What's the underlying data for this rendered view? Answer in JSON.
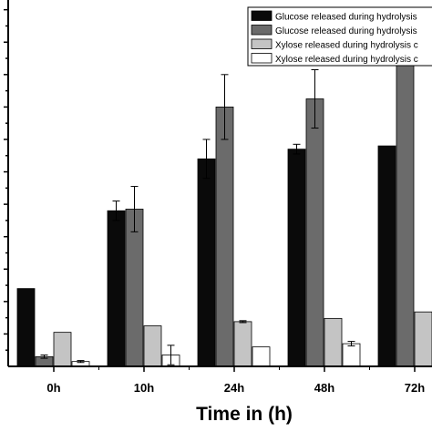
{
  "chart_data": {
    "type": "bar",
    "title": "",
    "xlabel": "Time in (h)",
    "ylabel": "",
    "categories": [
      "0h",
      "10h",
      "24h",
      "48h",
      "72h"
    ],
    "ylim": [
      0,
      11.3
    ],
    "grid": false,
    "legend_position": "top-right",
    "series": [
      {
        "name": "Glucose released during hydrolysis",
        "color": "#0a0a0a",
        "values": [
          2.4,
          4.8,
          6.4,
          6.7,
          6.8
        ],
        "errors": [
          0,
          0.3,
          0.6,
          0.15,
          0
        ]
      },
      {
        "name": "Glucose released during hydrolysis",
        "color": "#6b6b6b",
        "values": [
          0.3,
          4.85,
          8.0,
          8.25,
          10.3
        ],
        "errors": [
          0.05,
          0.7,
          1.0,
          0.9,
          0.2
        ]
      },
      {
        "name": "Xylose released during hydrolysis c",
        "color": "#c4c4c4",
        "values": [
          1.05,
          1.25,
          1.38,
          1.48,
          1.68
        ],
        "errors": [
          0,
          0,
          0.03,
          0,
          0
        ]
      },
      {
        "name": "Xylose released during hydrolysis c",
        "color": "#ffffff",
        "values": [
          0.15,
          0.35,
          0.6,
          0.7,
          0.8
        ],
        "errors": [
          0.03,
          0.3,
          0,
          0.07,
          0
        ]
      }
    ]
  }
}
